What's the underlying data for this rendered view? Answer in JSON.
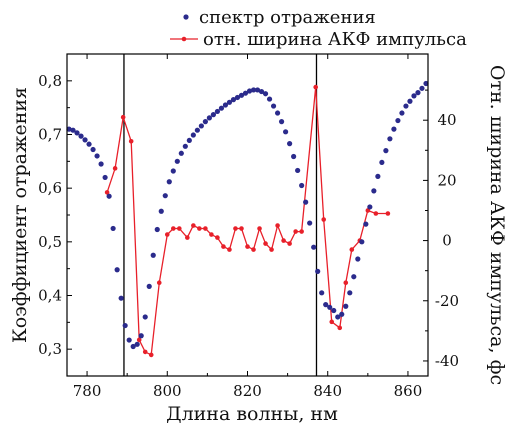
{
  "chart_data": {
    "type": "line",
    "xlabel": "Длина волны, нм",
    "ylabel_left": "Коэффициент отражения",
    "ylabel_right": "Отн. ширина АКФ импульса, фс",
    "xlim": [
      775,
      865
    ],
    "ylim_left": [
      0.25,
      0.85
    ],
    "ylim_right": [
      -45,
      62
    ],
    "x_ticks": [
      780,
      800,
      820,
      840,
      860
    ],
    "x_tick_labels": [
      "780",
      "800",
      "820",
      "840",
      "860"
    ],
    "y_left_ticks": [
      0.3,
      0.4,
      0.5,
      0.6,
      0.7,
      0.8
    ],
    "y_left_tick_labels": [
      "0,3",
      "0,4",
      "0,5",
      "0,6",
      "0,7",
      "0,8"
    ],
    "y_right_ticks": [
      -40,
      -20,
      0,
      20,
      40
    ],
    "y_right_tick_labels": [
      "-40",
      "-20",
      "0",
      "20",
      "40"
    ],
    "vertical_lines": [
      789.2,
      837.2
    ],
    "legend_position": "top-right",
    "series": [
      {
        "name": "спектр отражения",
        "axis": "left",
        "style": "markers",
        "color": "#2b2b8c",
        "x": [
          775.5,
          776.5,
          777.5,
          778.5,
          779.5,
          780.5,
          781.5,
          782.5,
          783.5,
          784.5,
          785.5,
          786.5,
          787.5,
          788.5,
          789.5,
          790.5,
          791.5,
          792.5,
          793.5,
          794.5,
          795.5,
          796.5,
          797.5,
          798.5,
          799.5,
          800.5,
          801.5,
          802.5,
          803.5,
          804.5,
          805.5,
          806.5,
          807.5,
          808.5,
          809.5,
          810.5,
          811.5,
          812.5,
          813.5,
          814.5,
          815.5,
          816.5,
          817.5,
          818.5,
          819.5,
          820.5,
          821.5,
          822.5,
          823.5,
          824.5,
          825.5,
          826.5,
          827.5,
          828.5,
          829.5,
          830.5,
          831.5,
          832.5,
          833.5,
          834.5,
          835.5,
          836.5,
          837.5,
          838.5,
          839.5,
          840.5,
          841.5,
          842.5,
          843.5,
          844.5,
          845.5,
          846.5,
          847.5,
          848.5,
          849.5,
          850.5,
          851.5,
          852.5,
          853.5,
          854.5,
          855.5,
          856.5,
          857.5,
          858.5,
          859.5,
          860.5,
          861.5,
          862.5,
          863.5,
          864.5
        ],
        "y": [
          0.71,
          0.708,
          0.703,
          0.697,
          0.69,
          0.682,
          0.672,
          0.66,
          0.645,
          0.62,
          0.585,
          0.525,
          0.448,
          0.395,
          0.344,
          0.317,
          0.305,
          0.309,
          0.325,
          0.36,
          0.417,
          0.475,
          0.523,
          0.557,
          0.586,
          0.612,
          0.632,
          0.65,
          0.665,
          0.678,
          0.689,
          0.699,
          0.708,
          0.716,
          0.724,
          0.731,
          0.737,
          0.743,
          0.749,
          0.755,
          0.76,
          0.765,
          0.769,
          0.773,
          0.777,
          0.781,
          0.783,
          0.783,
          0.78,
          0.776,
          0.766,
          0.753,
          0.74,
          0.724,
          0.705,
          0.683,
          0.659,
          0.633,
          0.605,
          0.574,
          0.535,
          0.49,
          0.445,
          0.405,
          0.383,
          0.378,
          0.372,
          0.36,
          0.365,
          0.38,
          0.405,
          0.435,
          0.468,
          0.5,
          0.533,
          0.565,
          0.595,
          0.622,
          0.648,
          0.67,
          0.692,
          0.71,
          0.726,
          0.74,
          0.753,
          0.762,
          0.772,
          0.778,
          0.786,
          0.795
        ]
      },
      {
        "name": "отн. ширина АКФ импульса",
        "axis": "right",
        "style": "line+markers",
        "color": "#e8202a",
        "x": [
          785,
          787,
          789,
          791,
          793,
          794.5,
          796,
          798,
          800,
          801.5,
          803,
          805,
          806.5,
          808,
          809.5,
          811,
          812.5,
          814,
          815.5,
          817,
          818.5,
          820,
          821.5,
          823,
          824.5,
          826,
          827.5,
          829,
          830.5,
          832,
          833.5,
          837,
          839,
          841,
          843,
          844.5,
          846,
          848,
          850,
          852,
          855
        ],
        "y": [
          16,
          24,
          41,
          33,
          -33,
          -37,
          -38,
          -14,
          2,
          4,
          4,
          1,
          5,
          4,
          4,
          2,
          1,
          -2,
          -3,
          4,
          4,
          -2,
          -3,
          4,
          -1,
          -3,
          5,
          0,
          -1,
          3,
          3,
          51,
          7,
          -27,
          -29,
          -14,
          -3,
          0,
          10,
          9,
          9
        ]
      }
    ]
  }
}
